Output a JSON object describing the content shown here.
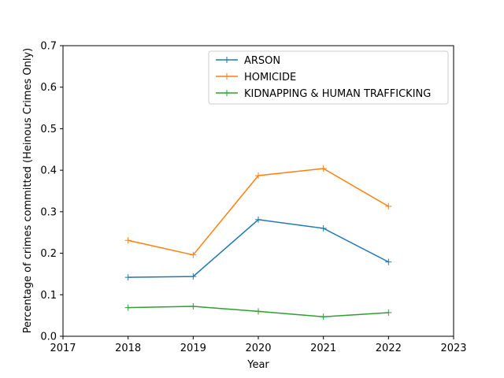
{
  "chart_data": {
    "type": "line",
    "title": "",
    "xlabel": "Year",
    "ylabel": "Percentage of crimes committed (Heinous Crimes Only)",
    "x": [
      2018,
      2019,
      2020,
      2021,
      2022
    ],
    "xlim": [
      2017,
      2023
    ],
    "ylim": [
      0,
      0.7
    ],
    "xticks": [
      "2017",
      "2018",
      "2019",
      "2020",
      "2021",
      "2022",
      "2023"
    ],
    "yticks": [
      "0.0",
      "0.1",
      "0.2",
      "0.3",
      "0.4",
      "0.5",
      "0.6",
      "0.7"
    ],
    "xtick_values": [
      2017,
      2018,
      2019,
      2020,
      2021,
      2022,
      2023
    ],
    "ytick_values": [
      0,
      0.1,
      0.2,
      0.3,
      0.4,
      0.5,
      0.6,
      0.7
    ],
    "grid": false,
    "legend_position": "top-right",
    "marker": "plus",
    "series": [
      {
        "name": "ARSON",
        "color": "#1f77b4",
        "values": [
          0.142,
          0.144,
          0.281,
          0.26,
          0.179
        ]
      },
      {
        "name": "HOMICIDE",
        "color": "#ff7f0e",
        "values": [
          0.231,
          0.196,
          0.387,
          0.404,
          0.313
        ]
      },
      {
        "name": "KIDNAPPING & HUMAN TRAFFICKING",
        "color": "#2ca02c",
        "values": [
          0.069,
          0.072,
          0.06,
          0.047,
          0.057
        ]
      }
    ]
  }
}
